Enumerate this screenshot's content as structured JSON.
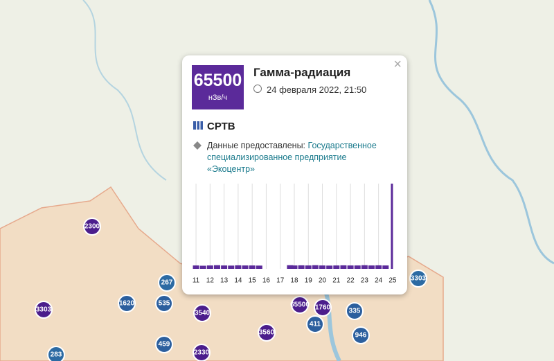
{
  "popup": {
    "value": "65500",
    "unit": "нЗв/ч",
    "title": "Гамма-радиация",
    "date": "24 февраля 2022, 21:50",
    "close": "×",
    "station": "СРТВ",
    "provider_label": "Данные предоставлены:",
    "provider": "Государственное специализированное предприятие «Экоцентр»"
  },
  "chart": {
    "type": "bar",
    "color": "#5b2a9a",
    "x": [
      11,
      11.5,
      12,
      12.5,
      13,
      13.5,
      14,
      14.5,
      15,
      15.5,
      17.7,
      18,
      18.5,
      19,
      19.5,
      20,
      20.5,
      21,
      21.5,
      22,
      22.5,
      23,
      23.5,
      24,
      24.5,
      25.1
    ],
    "values": [
      2600,
      2400,
      2600,
      2800,
      2600,
      2500,
      2700,
      2600,
      2600,
      2500,
      2800,
      2600,
      2700,
      2600,
      2800,
      2600,
      2500,
      2600,
      2700,
      2600,
      2600,
      2800,
      2600,
      2700,
      2600,
      65500
    ],
    "ylim": [
      0,
      65500
    ],
    "xlim": [
      10.8,
      25.3
    ],
    "xticks": [
      11,
      12,
      13,
      14,
      15,
      16,
      17,
      18,
      19,
      20,
      21,
      22,
      23,
      24,
      25
    ]
  },
  "markers": [
    {
      "label": "2300",
      "color": "#4b1d8c"
    },
    {
      "label": "267",
      "color": "#2c6aa3"
    },
    {
      "label": "1620",
      "color": "#2c5f9e"
    },
    {
      "label": "535",
      "color": "#2c5f9e"
    },
    {
      "label": "3303",
      "color": "#4b1d8c"
    },
    {
      "label": "3540",
      "color": "#4b1d8c"
    },
    {
      "label": "459",
      "color": "#2c5f9e"
    },
    {
      "label": "2330",
      "color": "#4b1d8c"
    },
    {
      "label": "283",
      "color": "#2c6aa3"
    },
    {
      "label": "3560",
      "color": "#4b1d8c"
    },
    {
      "label": "65500",
      "color": "#4b1d8c"
    },
    {
      "label": "1760",
      "color": "#4b1d8c"
    },
    {
      "label": "335",
      "color": "#2c5f9e"
    },
    {
      "label": "411",
      "color": "#2c5f9e"
    },
    {
      "label": "946",
      "color": "#2c5f9e"
    },
    {
      "label": "3303",
      "color": "#2c6aa3"
    }
  ]
}
